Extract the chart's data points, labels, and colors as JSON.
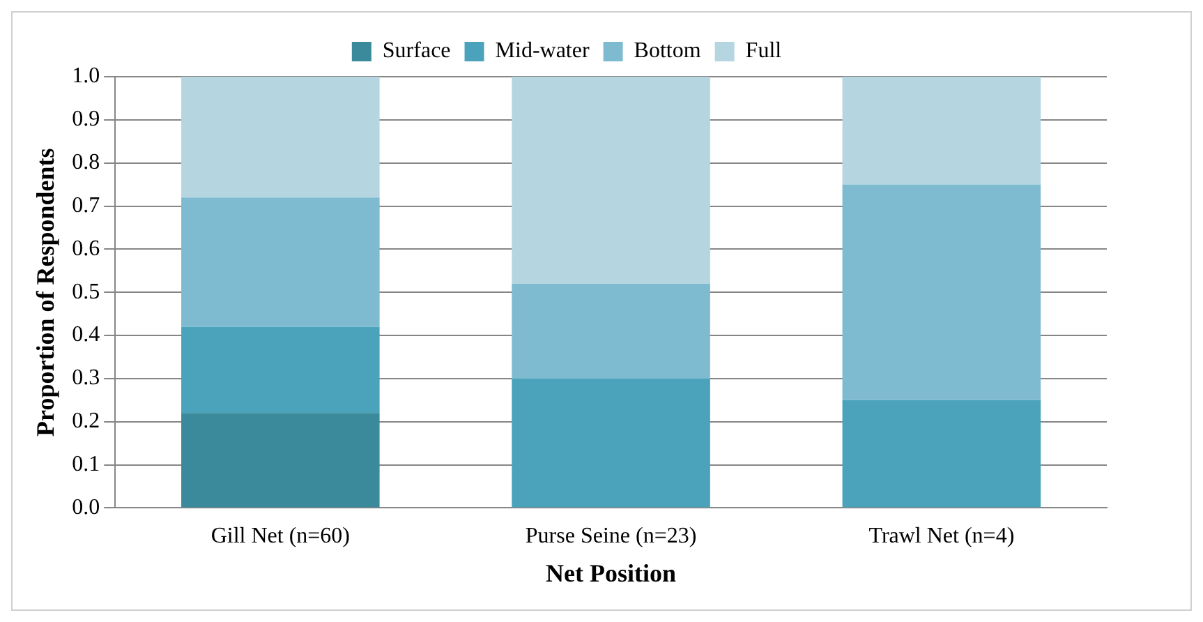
{
  "chart_data": {
    "type": "bar",
    "xlabel": "Net Position",
    "ylabel": "Proportion of Respondents",
    "categories": [
      "Gill Net (n=60)",
      "Purse Seine (n=23)",
      "Trawl Net (n=4)"
    ],
    "stacked": true,
    "ylim": [
      0,
      1
    ],
    "yticks": [
      {
        "value": 0,
        "label": "0.0"
      },
      0.1,
      0.2,
      0.3,
      0.4,
      0.5,
      0.6,
      0.7,
      0.8,
      0.9,
      {
        "value": 1,
        "label": "1.0"
      }
    ],
    "grid": "y",
    "legend": "top",
    "series": [
      {
        "name": "Surface",
        "color": "#3a8a9c",
        "values": [
          0.22,
          0,
          0
        ]
      },
      {
        "name": "Mid-water",
        "color": "#4aa3bb",
        "values": [
          0.2,
          0.3,
          0.25
        ]
      },
      {
        "name": "Bottom",
        "color": "#7fbbd0",
        "values": [
          0.3,
          0.22,
          0.5
        ]
      },
      {
        "name": "Full",
        "color": "#b5d5e0",
        "values": [
          0.28,
          0.48,
          0.25
        ]
      }
    ]
  }
}
